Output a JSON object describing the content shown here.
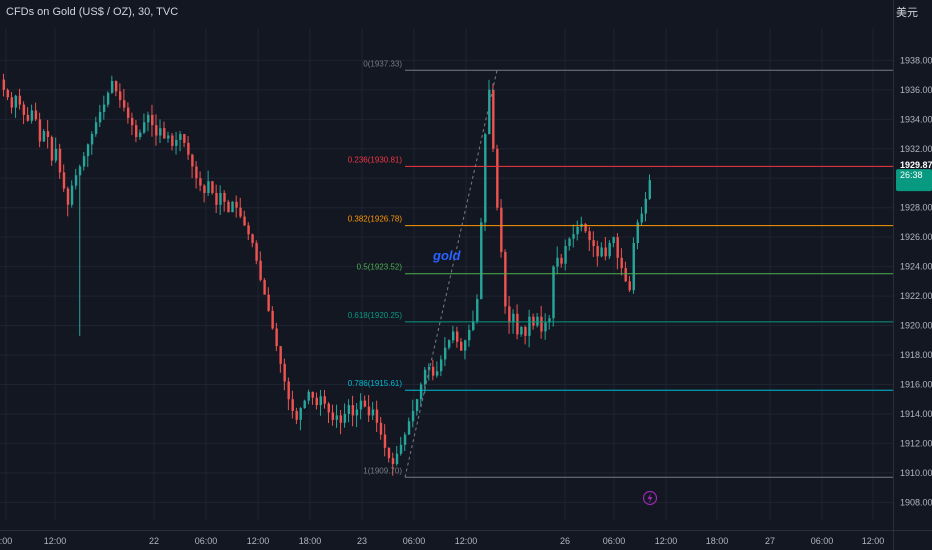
{
  "header": {
    "title": "CFDs on Gold (US$ / OZ), 30, TVC",
    "currency": "美元"
  },
  "colors": {
    "background": "#131722",
    "grid": "#1f2330",
    "up": "#26a69a",
    "down": "#ef5350",
    "fib_0": "#787b86",
    "fib_0236": "#f23645",
    "fib_0382": "#ff9800",
    "fib_05": "#4caf50",
    "fib_0618": "#089981",
    "fib_0786": "#00bcd4",
    "fib_1": "#787b86",
    "annotation": "#2962ff",
    "price_badge": "#089981"
  },
  "chart_data": {
    "type": "candlestick",
    "symbol": "CFDs on Gold (US$ / OZ)",
    "interval": "30",
    "ylim": [
      1906.8,
      1940.2
    ],
    "yticks": [
      1908,
      1910,
      1912,
      1914,
      1916,
      1918,
      1920,
      1922,
      1924,
      1926,
      1928,
      1930,
      1932,
      1934,
      1936,
      1938
    ],
    "ytick_labels": [
      "1908.00",
      "1910.00",
      "1912.00",
      "1914.00",
      "1916.00",
      "1918.00",
      "1920.00",
      "1922.00",
      "1924.00",
      "1926.00",
      "1928.00",
      "1930.00",
      "1932.00",
      "1934.00",
      "1936.00",
      "1938.00"
    ],
    "xtick_labels": [
      ":00",
      "12:00",
      "22",
      "06:00",
      "12:00",
      "18:00",
      "23",
      "06:00",
      "12:00",
      "26",
      "06:00",
      "12:00",
      "18:00",
      "27",
      "06:00",
      "12:00"
    ],
    "last_price": "1929.87",
    "countdown": "26:38",
    "annotation": "gold",
    "fibonacci": [
      {
        "ratio": "0",
        "price": 1937.33,
        "label": "0(1937.33)"
      },
      {
        "ratio": "0.236",
        "price": 1930.81,
        "label": "0.236(1930.81)"
      },
      {
        "ratio": "0.382",
        "price": 1926.78,
        "label": "0.382(1926.78)"
      },
      {
        "ratio": "0.5",
        "price": 1923.52,
        "label": "0.5(1923.52)"
      },
      {
        "ratio": "0.618",
        "price": 1920.25,
        "label": "0.618(1920.25)"
      },
      {
        "ratio": "0.786",
        "price": 1915.61,
        "label": "0.786(1915.61)"
      },
      {
        "ratio": "1",
        "price": 1909.7,
        "label": "1(1909.70)"
      }
    ],
    "close_path": [
      1936.0,
      1935.5,
      1934.8,
      1935.6,
      1935.0,
      1934.3,
      1933.9,
      1934.6,
      1934.0,
      1932.5,
      1933.2,
      1932.8,
      1931.2,
      1932.0,
      1930.4,
      1929.3,
      1928.2,
      1929.5,
      1930.2,
      1930.8,
      1931.5,
      1932.3,
      1933.0,
      1933.8,
      1934.5,
      1935.0,
      1935.8,
      1936.6,
      1935.9,
      1935.3,
      1934.8,
      1934.1,
      1933.6,
      1932.8,
      1933.1,
      1933.8,
      1934.3,
      1933.6,
      1932.9,
      1933.4,
      1932.7,
      1932.9,
      1932.2,
      1932.6,
      1933.0,
      1932.4,
      1931.6,
      1930.8,
      1930.0,
      1929.5,
      1929.0,
      1929.8,
      1929.0,
      1928.2,
      1929.0,
      1928.4,
      1927.7,
      1928.4,
      1928.0,
      1927.4,
      1926.8,
      1926.2,
      1925.6,
      1924.4,
      1923.1,
      1922.1,
      1921.0,
      1919.8,
      1918.6,
      1917.4,
      1916.2,
      1915.0,
      1914.2,
      1913.6,
      1914.4,
      1914.9,
      1915.5,
      1915.1,
      1914.6,
      1915.2,
      1914.7,
      1914.1,
      1913.6,
      1913.9,
      1913.4,
      1914.0,
      1914.6,
      1913.9,
      1914.3,
      1914.9,
      1914.5,
      1913.9,
      1914.3,
      1913.4,
      1912.6,
      1911.7,
      1911.0,
      1910.6,
      1911.3,
      1911.9,
      1912.6,
      1913.5,
      1914.2,
      1915.0,
      1916.0,
      1917.0,
      1917.2,
      1916.6,
      1916.9,
      1917.7,
      1918.5,
      1919.0,
      1919.6,
      1918.9,
      1918.3,
      1919.0,
      1919.7,
      1920.3,
      1921.8,
      1927.0,
      1933.0,
      1936.0,
      1932.0,
      1928.0,
      1925.0,
      1921.3,
      1920.2,
      1920.8,
      1919.4,
      1919.9,
      1919.3,
      1920.6,
      1920.0,
      1920.6,
      1919.6,
      1920.2,
      1920.5,
      1924.0,
      1924.6,
      1924.2,
      1925.4,
      1925.9,
      1926.2,
      1926.7,
      1926.9,
      1926.4,
      1925.8,
      1925.4,
      1924.7,
      1925.3,
      1924.7,
      1925.6,
      1926.0,
      1924.6,
      1923.9,
      1923.0,
      1922.4,
      1925.6,
      1927.0,
      1927.6,
      1928.6,
      1929.87
    ],
    "open_price": 1936.7,
    "x_range_bars": [
      0,
      200
    ]
  }
}
